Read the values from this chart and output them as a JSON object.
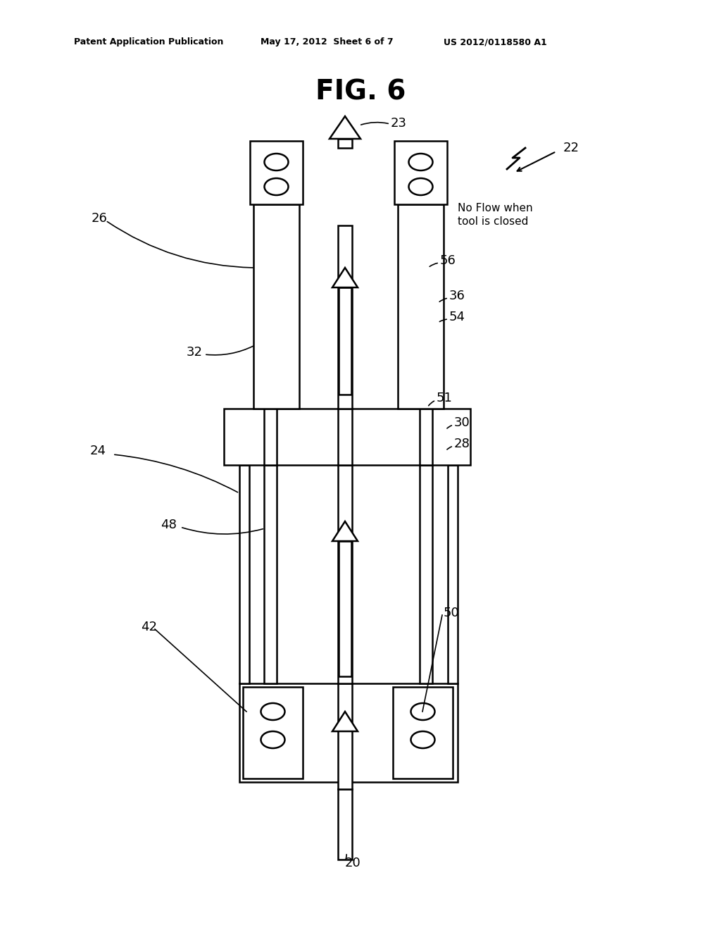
{
  "bg_color": "#ffffff",
  "line_color": "#000000",
  "title_text": "FIG. 6",
  "header_left": "Patent Application Publication",
  "header_mid": "May 17, 2012  Sheet 6 of 7",
  "header_right": "US 2012/0118580 A1",
  "fig_title": "FIG. 6",
  "label_fontsize": 13,
  "header_fontsize": 9,
  "title_fontsize": 28,
  "lw": 1.8
}
